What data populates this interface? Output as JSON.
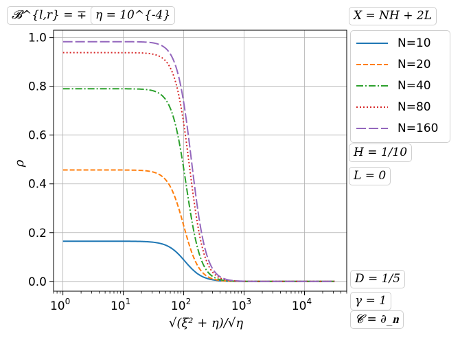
{
  "annotations": {
    "boundary": "𝓑^{l,r} = ∓ ∂_x",
    "eta": "η = 10^{-4}",
    "x_expr": "X = NH + 2L",
    "h": "H = 1/10",
    "l": "L = 0",
    "d": "D = 1/5",
    "gamma": "γ = 1",
    "c": "𝓒 = ∂_𝐧"
  },
  "chart_data": {
    "type": "line",
    "xlabel": "√(ξ² + η)/√η",
    "ylabel": "ρ",
    "xscale": "log",
    "xlim": [
      0.7,
      50000
    ],
    "ylim": [
      -0.04,
      1.03
    ],
    "x_ticks": [
      "10^0",
      "10^1",
      "10^2",
      "10^3",
      "10^4"
    ],
    "y_ticks": [
      "0.0",
      "0.2",
      "0.4",
      "0.6",
      "0.8",
      "1.0"
    ],
    "grid": true,
    "legend_position": "right-outside-top",
    "x_range_data": [
      1,
      31600
    ],
    "series": [
      {
        "name": "N=10",
        "plateau": 0.165,
        "x_half": 105,
        "steepness": 3.0,
        "color": "#1f77b4",
        "dash": "solid"
      },
      {
        "name": "N=20",
        "plateau": 0.457,
        "x_half": 100,
        "steepness": 3.4,
        "color": "#ff7f0e",
        "dash": "dashed"
      },
      {
        "name": "N=40",
        "plateau": 0.79,
        "x_half": 110,
        "steepness": 3.6,
        "color": "#2ca02c",
        "dash": "dashdot"
      },
      {
        "name": "N=80",
        "plateau": 0.938,
        "x_half": 125,
        "steepness": 3.6,
        "color": "#d62728",
        "dash": "dotted"
      },
      {
        "name": "N=160",
        "plateau": 0.983,
        "x_half": 135,
        "steepness": 3.6,
        "color": "#9467bd",
        "dash": "longdash"
      }
    ]
  }
}
